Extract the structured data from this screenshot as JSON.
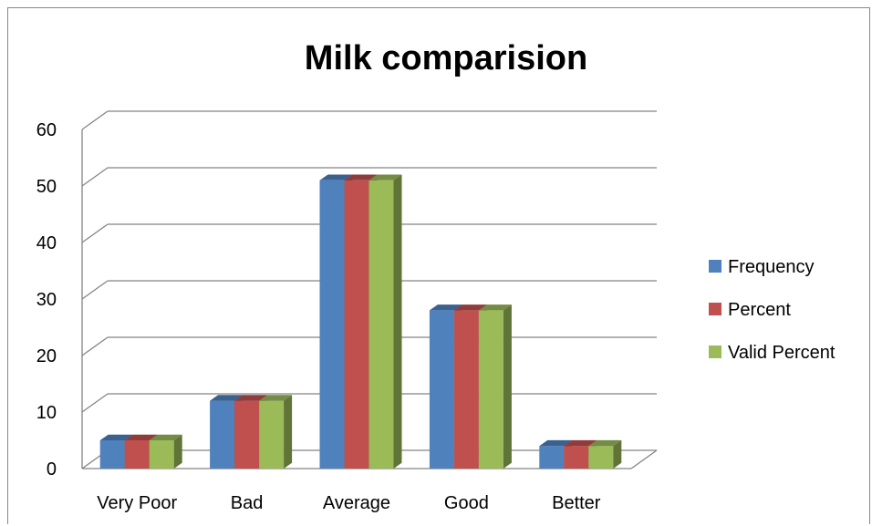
{
  "chart_data": {
    "type": "bar",
    "title": "Milk comparision",
    "xlabel": "",
    "ylabel": "",
    "categories": [
      "Very Poor",
      "Bad",
      "Average",
      "Good",
      "Better"
    ],
    "series": [
      {
        "name": "Frequency",
        "values": [
          5,
          12,
          51,
          28,
          4
        ],
        "color": "#4F81BD"
      },
      {
        "name": "Percent",
        "values": [
          5,
          12,
          51,
          28,
          4
        ],
        "color": "#C0504D"
      },
      {
        "name": "Valid Percent",
        "values": [
          5,
          12,
          51,
          28,
          4
        ],
        "color": "#9BBB59"
      }
    ],
    "ylim": [
      0,
      60
    ],
    "yticks": [
      "0",
      "10",
      "20",
      "30",
      "40",
      "50",
      "60"
    ],
    "grid": true,
    "legend_position": "right"
  }
}
